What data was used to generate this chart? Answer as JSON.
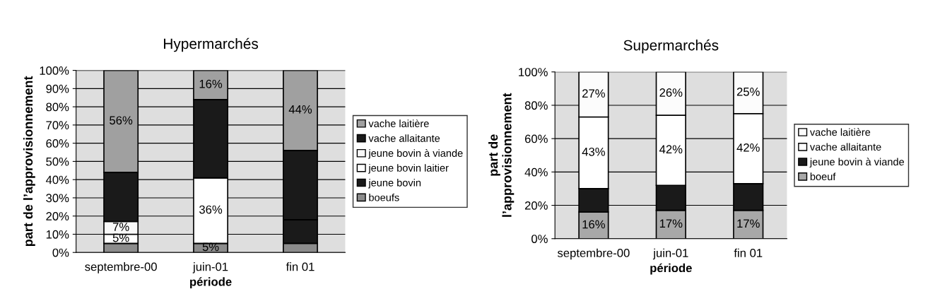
{
  "chart_data": [
    {
      "type": "bar",
      "stacked": true,
      "title": "Hypermarchés",
      "xlabel": "période",
      "ylabel": "part de l’approvisionnement",
      "categories": [
        "septembre-00",
        "juin-01",
        "fin 01"
      ],
      "ylim": [
        0,
        100
      ],
      "yticks": [
        {
          "value": 0,
          "label": "0%"
        },
        {
          "value": 10,
          "label": "10%"
        },
        {
          "value": 20,
          "label": "20%"
        },
        {
          "value": 30,
          "label": "30%"
        },
        {
          "value": 40,
          "label": "40%"
        },
        {
          "value": 50,
          "label": "50%"
        },
        {
          "value": 60,
          "label": "60%"
        },
        {
          "value": 70,
          "label": "70%"
        },
        {
          "value": 80,
          "label": "80%"
        },
        {
          "value": 90,
          "label": "90%"
        },
        {
          "value": 100,
          "label": "100%"
        }
      ],
      "grid": "y",
      "legend": "right",
      "series": [
        {
          "name": "boeufs",
          "color": "#8c8c8c",
          "values": [
            5,
            5,
            5
          ],
          "value_labels": [
            null,
            "5%",
            null
          ]
        },
        {
          "name": "jeune bovin",
          "color": "#1a1a1a",
          "values": [
            0,
            0,
            13
          ],
          "value_labels": [
            null,
            null,
            null
          ]
        },
        {
          "name": "jeune bovin laitier",
          "color": "#ffffff",
          "values": [
            5,
            36,
            0
          ],
          "value_labels": [
            "5%",
            "36%",
            null
          ]
        },
        {
          "name": "jeune bovin à viande",
          "color": "#f8f8f8",
          "values": [
            7,
            0,
            0
          ],
          "value_labels": [
            "7%",
            null,
            null
          ]
        },
        {
          "name": "vache allaitante",
          "color": "#1a1a1a",
          "values": [
            27,
            43,
            38
          ],
          "value_labels": [
            null,
            null,
            null
          ]
        },
        {
          "name": "vache laitière",
          "color": "#a0a0a0",
          "values": [
            56,
            16,
            44
          ],
          "value_labels": [
            "56%",
            "16%",
            "44%"
          ]
        }
      ]
    },
    {
      "type": "bar",
      "stacked": true,
      "title": "Supermarchés",
      "xlabel": "période",
      "ylabel": "part de\nl’approvisionnement",
      "categories": [
        "septembre-00",
        "juin-01",
        "fin 01"
      ],
      "ylim": [
        0,
        100
      ],
      "yticks": [
        {
          "value": 0,
          "label": "0%"
        },
        {
          "value": 20,
          "label": "20%"
        },
        {
          "value": 40,
          "label": "40%"
        },
        {
          "value": 60,
          "label": "60%"
        },
        {
          "value": 80,
          "label": "80%"
        },
        {
          "value": 100,
          "label": "100%"
        }
      ],
      "grid": "y",
      "legend": "right",
      "series": [
        {
          "name": "boeuf",
          "color": "#a8a8a8",
          "values": [
            16,
            17,
            17
          ],
          "value_labels": [
            "16%",
            "17%",
            "17%"
          ]
        },
        {
          "name": "jeune bovin à viande",
          "color": "#1a1a1a",
          "values": [
            14,
            15,
            16
          ],
          "value_labels": [
            null,
            null,
            null
          ]
        },
        {
          "name": "vache allaitante",
          "color": "#ffffff",
          "values": [
            43,
            42,
            42
          ],
          "value_labels": [
            "43%",
            "42%",
            "42%"
          ]
        },
        {
          "name": "vache laitière",
          "color": "#fcfcfc",
          "values": [
            27,
            26,
            25
          ],
          "value_labels": [
            "27%",
            "26%",
            "25%"
          ]
        }
      ]
    }
  ]
}
